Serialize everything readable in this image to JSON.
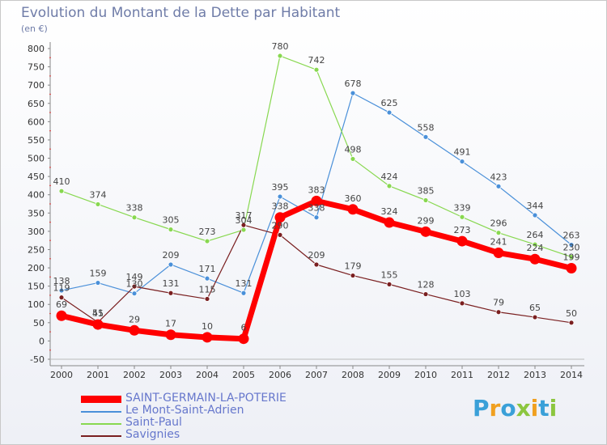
{
  "header": {
    "title": "Evolution du Montant de la Dette par Habitant",
    "subtitle": "(en €)"
  },
  "logo": {
    "text": "Proxiti"
  },
  "chart_data": {
    "type": "line",
    "categories": [
      "2000",
      "2001",
      "2002",
      "2003",
      "2004",
      "2005",
      "2006",
      "2007",
      "2008",
      "2009",
      "2010",
      "2011",
      "2012",
      "2013",
      "2014"
    ],
    "yticks": [
      800,
      750,
      700,
      650,
      600,
      550,
      500,
      450,
      400,
      350,
      300,
      250,
      200,
      150,
      100,
      50,
      0,
      -50
    ],
    "ytick_labels": [
      "800",
      "750",
      "700",
      "650",
      "600",
      "550",
      "500",
      "450",
      "400",
      "350",
      "300",
      "250",
      "200",
      "150",
      "100",
      "50",
      "0",
      "-50"
    ],
    "ylim": [
      -50,
      800
    ],
    "grid": false,
    "legend_position": "bottom-left",
    "series": [
      {
        "name": "SAINT-GERMAIN-LA-POTERIE",
        "color": "#ff0000",
        "width": 7,
        "radius": 6.5,
        "values": [
          69,
          45,
          29,
          17,
          10,
          6,
          338,
          383,
          360,
          324,
          299,
          273,
          241,
          224,
          199
        ]
      },
      {
        "name": "Le Mont-Saint-Adrien",
        "color": "#4a90d9",
        "width": 1.2,
        "radius": 3,
        "values": [
          138,
          159,
          130,
          209,
          171,
          131,
          395,
          338,
          678,
          625,
          558,
          491,
          423,
          344,
          263
        ]
      },
      {
        "name": "Saint-Paul",
        "color": "#88d850",
        "width": 1.2,
        "radius": 3,
        "values": [
          410,
          374,
          338,
          305,
          273,
          304,
          780,
          742,
          498,
          424,
          385,
          339,
          296,
          264,
          230
        ]
      },
      {
        "name": "Savignies",
        "color": "#7a1f20",
        "width": 1.2,
        "radius": 3,
        "values": [
          119,
          51,
          149,
          131,
          115,
          317,
          290,
          209,
          179,
          155,
          128,
          103,
          79,
          65,
          50
        ]
      }
    ]
  }
}
